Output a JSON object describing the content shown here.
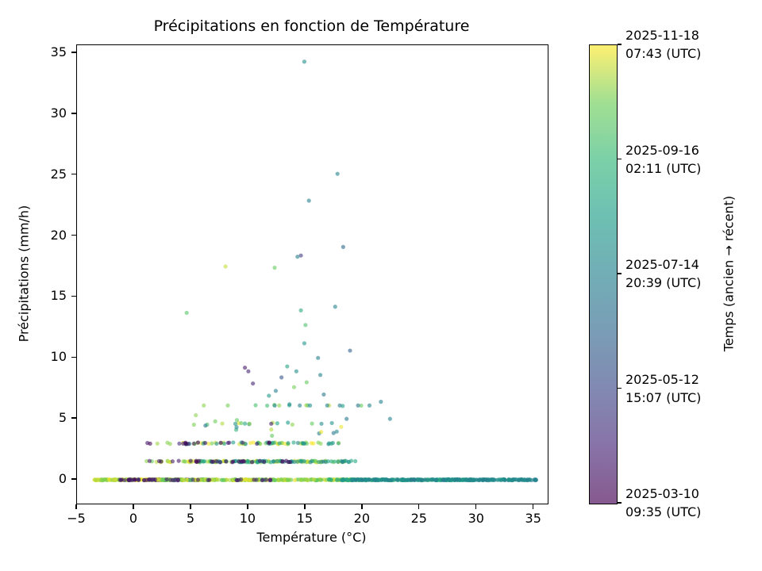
{
  "colors": {
    "text": "#000000",
    "spine": "#000000",
    "background": "#ffffff"
  },
  "chart_data": {
    "type": "scatter",
    "title": "Précipitations en fonction de Température",
    "xlabel": "Température (°C)",
    "ylabel": "Précipitations (mm/h)",
    "xlim": [
      -5,
      36.2
    ],
    "ylim": [
      -1.95,
      35.65
    ],
    "grid": false,
    "marker_alpha": 0.6,
    "marker_radius": 2.6,
    "seed": 42,
    "xticks": {
      "values": [
        -5,
        0,
        5,
        10,
        15,
        20,
        25,
        30,
        35
      ],
      "labels": [
        "−5",
        "0",
        "5",
        "10",
        "15",
        "20",
        "25",
        "30",
        "35"
      ]
    },
    "yticks": {
      "values": [
        0,
        5,
        10,
        15,
        20,
        25,
        30,
        35
      ],
      "labels": [
        "0",
        "5",
        "10",
        "15",
        "20",
        "25",
        "30",
        "35"
      ]
    },
    "colormap": {
      "name": "viridis",
      "stops": [
        [
          0.0,
          "#440154"
        ],
        [
          0.125,
          "#482878"
        ],
        [
          0.25,
          "#3e4a89"
        ],
        [
          0.375,
          "#31688e"
        ],
        [
          0.5,
          "#26828e"
        ],
        [
          0.625,
          "#1f9e89"
        ],
        [
          0.75,
          "#35b779"
        ],
        [
          0.875,
          "#6ece58"
        ],
        [
          1.0,
          "#fde725"
        ]
      ]
    },
    "colorbar": {
      "label": "Temps (ancien → récent)",
      "ticks": [
        {
          "frac": 1.0,
          "line1": "2025-11-18",
          "line2": "07:43 (UTC)"
        },
        {
          "frac": 0.75,
          "line1": "2025-09-16",
          "line2": "02:11 (UTC)"
        },
        {
          "frac": 0.5,
          "line1": "2025-07-14",
          "line2": "20:39 (UTC)"
        },
        {
          "frac": 0.25,
          "line1": "2025-05-12",
          "line2": "15:07 (UTC)"
        },
        {
          "frac": 0.0,
          "line1": "2025-03-10",
          "line2": "09:35 (UTC)"
        }
      ]
    },
    "outliers": [
      [
        14.9,
        34.3,
        0.55
      ],
      [
        17.8,
        25.1,
        0.52
      ],
      [
        15.3,
        22.9,
        0.5
      ],
      [
        18.3,
        19.1,
        0.38
      ],
      [
        14.6,
        18.4,
        0.2
      ],
      [
        14.3,
        18.3,
        0.5
      ],
      [
        8.0,
        17.5,
        0.95
      ],
      [
        12.3,
        17.4,
        0.85
      ],
      [
        17.6,
        14.2,
        0.52
      ],
      [
        14.6,
        13.9,
        0.68
      ],
      [
        4.6,
        13.7,
        0.82
      ],
      [
        15.0,
        12.7,
        0.8
      ],
      [
        14.9,
        11.2,
        0.6
      ],
      [
        18.9,
        10.6,
        0.35
      ],
      [
        16.1,
        10.0,
        0.5
      ],
      [
        13.4,
        9.3,
        0.65
      ],
      [
        9.7,
        9.2,
        0.08
      ],
      [
        10.0,
        8.9,
        0.12
      ],
      [
        14.2,
        8.9,
        0.55
      ],
      [
        12.9,
        8.4,
        0.3
      ],
      [
        16.3,
        8.6,
        0.5
      ],
      [
        15.1,
        8.0,
        0.85
      ],
      [
        10.4,
        7.9,
        0.12
      ],
      [
        14.0,
        7.6,
        0.88
      ],
      [
        12.4,
        7.3,
        0.5
      ],
      [
        16.6,
        7.0,
        0.45
      ],
      [
        11.8,
        6.9,
        0.6
      ],
      [
        6.1,
        6.1,
        0.9
      ],
      [
        8.2,
        6.1,
        0.88
      ],
      [
        12.7,
        6.1,
        0.9
      ],
      [
        13.6,
        6.2,
        0.55
      ],
      [
        14.5,
        6.1,
        0.5
      ],
      [
        15.4,
        6.1,
        0.55
      ],
      [
        16.9,
        6.1,
        0.5
      ],
      [
        18.0,
        6.1,
        0.48
      ],
      [
        19.6,
        6.1,
        0.45
      ],
      [
        20.6,
        6.1,
        0.5
      ],
      [
        21.6,
        6.4,
        0.5
      ],
      [
        5.4,
        5.3,
        0.9
      ],
      [
        22.4,
        5.0,
        0.5
      ],
      [
        18.6,
        5.0,
        0.45
      ],
      [
        9.0,
        4.9,
        0.85
      ],
      [
        7.1,
        4.8,
        0.87
      ],
      [
        12.0,
        4.6,
        0.1
      ],
      [
        10.1,
        4.6,
        0.9
      ],
      [
        16.4,
        4.6,
        0.55
      ]
    ],
    "clusters": [
      {
        "y": 0.0,
        "jy": 0.04,
        "x": [
          -3.5,
          3.0
        ],
        "t": [
          0.88,
          1.0
        ],
        "n": 130
      },
      {
        "y": 0.0,
        "jy": 0.04,
        "x": [
          -1.5,
          6.0
        ],
        "t": [
          0.0,
          0.1
        ],
        "n": 50
      },
      {
        "y": 0.0,
        "jy": 0.04,
        "x": [
          2.0,
          20.0
        ],
        "t": [
          0.82,
          1.0
        ],
        "n": 280
      },
      {
        "y": 0.0,
        "jy": 0.04,
        "x": [
          0.0,
          12.0
        ],
        "t": [
          0.05,
          0.2
        ],
        "n": 30
      },
      {
        "y": 0.0,
        "jy": 0.04,
        "x": [
          17.0,
          29.0
        ],
        "t": [
          0.58,
          0.78
        ],
        "n": 140
      },
      {
        "y": 0.0,
        "jy": 0.04,
        "x": [
          19.0,
          34.5
        ],
        "t": [
          0.45,
          0.62
        ],
        "n": 170
      },
      {
        "y": 0.0,
        "jy": 0.04,
        "x": [
          29.0,
          35.2
        ],
        "t": [
          0.48,
          0.58
        ],
        "n": 70
      },
      {
        "y": 1.5,
        "jy": 0.06,
        "x": [
          1.0,
          19.5
        ],
        "t": [
          0.85,
          1.0
        ],
        "n": 95
      },
      {
        "y": 1.5,
        "jy": 0.06,
        "x": [
          5.0,
          19.5
        ],
        "t": [
          0.5,
          0.72
        ],
        "n": 70
      },
      {
        "y": 1.5,
        "jy": 0.06,
        "x": [
          1.0,
          14.0
        ],
        "t": [
          0.0,
          0.15
        ],
        "n": 30
      },
      {
        "y": 3.0,
        "jy": 0.07,
        "x": [
          2.0,
          18.0
        ],
        "t": [
          0.85,
          1.0
        ],
        "n": 45
      },
      {
        "y": 3.0,
        "jy": 0.07,
        "x": [
          4.0,
          19.0
        ],
        "t": [
          0.5,
          0.7
        ],
        "n": 28
      },
      {
        "y": 3.0,
        "jy": 0.07,
        "x": [
          1.0,
          13.0
        ],
        "t": [
          0.0,
          0.15
        ],
        "n": 18
      },
      {
        "y": 4.6,
        "jy": 0.1,
        "x": [
          5.0,
          18.0
        ],
        "t": [
          0.5,
          1.0
        ],
        "n": 14
      },
      {
        "y": 4.0,
        "jy": 0.45,
        "x": [
          5.0,
          19.0
        ],
        "t": [
          0.4,
          1.0
        ],
        "n": 10
      },
      {
        "y": 6.1,
        "jy": 0.05,
        "x": [
          9.0,
          21.0
        ],
        "t": [
          0.45,
          0.95
        ],
        "n": 10
      }
    ]
  }
}
